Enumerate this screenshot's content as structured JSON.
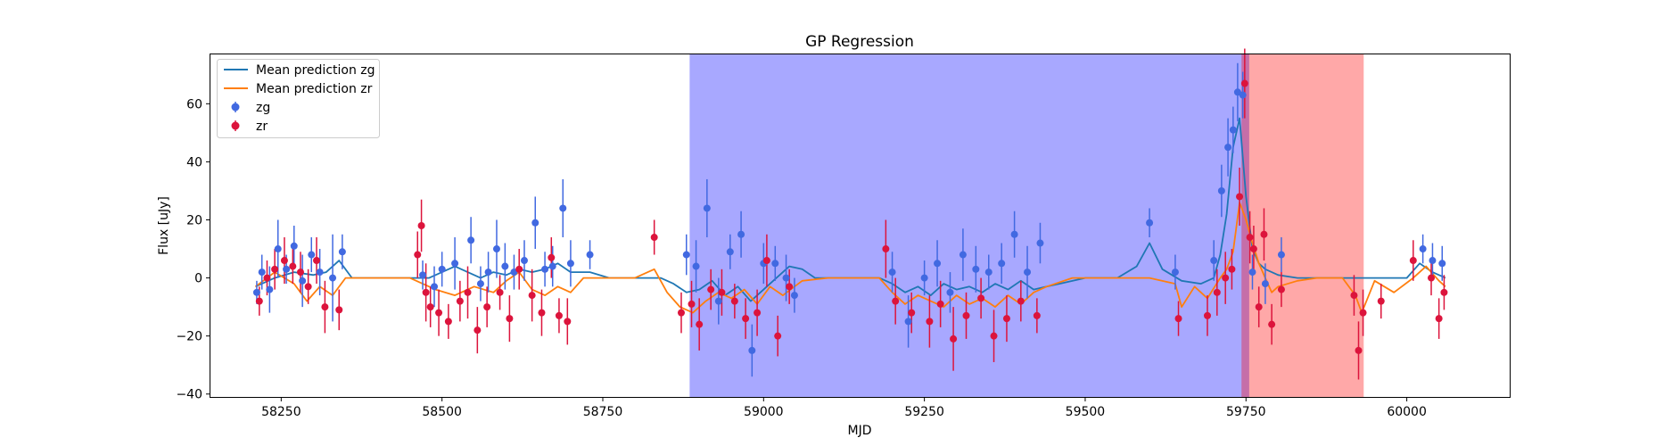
{
  "chart_data": {
    "type": "scatter",
    "title": "GP Regression",
    "xlabel": "MJD",
    "ylabel": "Flux [uJy]",
    "xlim": [
      58140,
      60160
    ],
    "ylim": [
      -41,
      77
    ],
    "xticks": [
      58250,
      58500,
      58750,
      59000,
      59250,
      59500,
      59750,
      60000
    ],
    "yticks": [
      -40,
      -20,
      0,
      20,
      40,
      60
    ],
    "grid": false,
    "legend_position": "top-left",
    "shaded_regions": [
      {
        "x": [
          58885,
          59755
        ],
        "color": "#0000ff",
        "opacity": 0.34
      },
      {
        "x": [
          59743,
          59933
        ],
        "color": "#ff0000",
        "opacity": 0.34
      }
    ],
    "series": [
      {
        "name": "Mean prediction zg",
        "kind": "line",
        "color": "#1f77b4",
        "x": [
          58210,
          58240,
          58270,
          58300,
          58320,
          58340,
          58360,
          58400,
          58450,
          58480,
          58500,
          58520,
          58540,
          58560,
          58580,
          58600,
          58620,
          58640,
          58660,
          58680,
          58700,
          58730,
          58760,
          58800,
          58840,
          58860,
          58880,
          58900,
          58920,
          58940,
          58960,
          58980,
          59000,
          59020,
          59040,
          59060,
          59080,
          59100,
          59150,
          59180,
          59200,
          59220,
          59240,
          59260,
          59280,
          59300,
          59320,
          59340,
          59360,
          59380,
          59400,
          59420,
          59440,
          59460,
          59500,
          59550,
          59580,
          59600,
          59620,
          59650,
          59680,
          59700,
          59710,
          59720,
          59730,
          59740,
          59750,
          59760,
          59770,
          59780,
          59800,
          59830,
          59860,
          59900,
          59950,
          60000,
          60020,
          60040,
          60060
        ],
        "y": [
          -3,
          0,
          2,
          1,
          2,
          6,
          0,
          0,
          0,
          0,
          2,
          4,
          2,
          0,
          2,
          1,
          3,
          2,
          3,
          5,
          2,
          2,
          0,
          0,
          0,
          -2,
          -5,
          -4,
          -1,
          -6,
          -3,
          -8,
          -4,
          0,
          4,
          3,
          0,
          0,
          0,
          0,
          -2,
          -5,
          -3,
          -6,
          -2,
          -4,
          -3,
          -5,
          -2,
          -4,
          -1,
          -4,
          -3,
          -2,
          0,
          0,
          4,
          12,
          3,
          -1,
          -2,
          0,
          8,
          22,
          45,
          55,
          28,
          10,
          5,
          3,
          1,
          0,
          0,
          0,
          0,
          0,
          5,
          2,
          0
        ]
      },
      {
        "name": "Mean prediction zr",
        "kind": "line",
        "color": "#ff7f0e",
        "x": [
          58210,
          58240,
          58270,
          58290,
          58310,
          58330,
          58350,
          58400,
          58450,
          58470,
          58490,
          58520,
          58550,
          58580,
          58600,
          58620,
          58640,
          58660,
          58680,
          58700,
          58720,
          58760,
          58800,
          58830,
          58850,
          58870,
          58890,
          58910,
          58930,
          58950,
          58970,
          58990,
          59010,
          59030,
          59060,
          59100,
          59150,
          59180,
          59200,
          59220,
          59240,
          59260,
          59280,
          59300,
          59320,
          59340,
          59360,
          59380,
          59400,
          59420,
          59440,
          59480,
          59550,
          59600,
          59640,
          59650,
          59670,
          59690,
          59710,
          59720,
          59730,
          59740,
          59750,
          59760,
          59770,
          59780,
          59790,
          59800,
          59830,
          59860,
          59900,
          59920,
          59930,
          59950,
          59980,
          60010,
          60030,
          60050,
          60060
        ],
        "y": [
          -3,
          2,
          -2,
          -8,
          -3,
          -6,
          0,
          0,
          0,
          -2,
          -4,
          -6,
          -3,
          -5,
          -1,
          2,
          -4,
          -6,
          -3,
          -5,
          0,
          0,
          0,
          3,
          -5,
          -10,
          -12,
          -8,
          -5,
          -7,
          -4,
          -9,
          -3,
          -6,
          -1,
          0,
          0,
          0,
          -5,
          -9,
          -6,
          -8,
          -10,
          -6,
          -9,
          -7,
          -10,
          -6,
          -9,
          -5,
          -3,
          0,
          0,
          0,
          -2,
          -10,
          -3,
          -7,
          0,
          3,
          9,
          26,
          20,
          12,
          5,
          0,
          -5,
          -3,
          -1,
          0,
          0,
          -6,
          -12,
          -1,
          -5,
          0,
          4,
          -1,
          -3
        ]
      },
      {
        "name": "zg",
        "kind": "errorbar",
        "color": "#4169e1",
        "x": [
          58212,
          58220,
          58232,
          58245,
          58258,
          58270,
          58283,
          58297,
          58310,
          58330,
          58345,
          58470,
          58488,
          58500,
          58520,
          58545,
          58560,
          58572,
          58585,
          58598,
          58612,
          58628,
          58645,
          58660,
          58672,
          58688,
          58700,
          58730,
          58880,
          58895,
          58912,
          58930,
          58948,
          58965,
          58982,
          59000,
          59018,
          59035,
          59048,
          59200,
          59225,
          59250,
          59270,
          59290,
          59310,
          59330,
          59350,
          59370,
          59390,
          59410,
          59430,
          59600,
          59640,
          59700,
          59712,
          59722,
          59730,
          59737,
          59745,
          59760,
          59780,
          59805,
          60025,
          60040,
          60055
        ],
        "y": [
          -5,
          2,
          -4,
          10,
          3,
          11,
          -1,
          8,
          2,
          0,
          9,
          1,
          -3,
          3,
          5,
          13,
          -2,
          2,
          10,
          4,
          2,
          6,
          19,
          3,
          4,
          24,
          5,
          8,
          8,
          4,
          24,
          -8,
          9,
          15,
          -25,
          5,
          5,
          0,
          -6,
          2,
          -15,
          0,
          5,
          -5,
          8,
          3,
          2,
          5,
          15,
          2,
          12,
          19,
          2,
          6,
          30,
          45,
          51,
          64,
          63,
          2,
          -2,
          8,
          10,
          6,
          5
        ],
        "yerr": [
          4,
          6,
          8,
          10,
          5,
          7,
          9,
          6,
          8,
          15,
          6,
          5,
          7,
          6,
          9,
          8,
          6,
          7,
          10,
          8,
          6,
          7,
          9,
          6,
          7,
          10,
          8,
          5,
          7,
          9,
          10,
          8,
          6,
          8,
          9,
          7,
          6,
          8,
          6,
          7,
          9,
          6,
          8,
          7,
          9,
          8,
          6,
          7,
          8,
          9,
          7,
          5,
          6,
          7,
          9,
          10,
          8,
          10,
          8,
          6,
          7,
          6,
          5,
          6,
          6
        ]
      },
      {
        "name": "zr",
        "kind": "errorbar",
        "color": "#dc143c",
        "x": [
          58216,
          58228,
          58240,
          58255,
          58268,
          58280,
          58292,
          58305,
          58318,
          58340,
          58462,
          58468,
          58475,
          58482,
          58495,
          58510,
          58528,
          58540,
          58555,
          58570,
          58590,
          58605,
          58620,
          58640,
          58655,
          58670,
          58682,
          58695,
          58830,
          58872,
          58888,
          58900,
          58918,
          58935,
          58955,
          58972,
          58990,
          59005,
          59022,
          59040,
          59190,
          59205,
          59230,
          59258,
          59275,
          59295,
          59315,
          59338,
          59358,
          59378,
          59400,
          59425,
          59645,
          59690,
          59705,
          59718,
          59728,
          59740,
          59748,
          59756,
          59762,
          59770,
          59778,
          59790,
          59805,
          59918,
          59925,
          59932,
          59960,
          60010,
          60038,
          60050,
          60058
        ],
        "y": [
          -8,
          0,
          3,
          6,
          4,
          2,
          -3,
          6,
          -10,
          -11,
          8,
          18,
          -5,
          -10,
          -12,
          -15,
          -8,
          -5,
          -18,
          -10,
          -5,
          -14,
          3,
          -6,
          -12,
          7,
          -13,
          -15,
          14,
          -12,
          -9,
          -16,
          -4,
          -5,
          -8,
          -14,
          -12,
          6,
          -20,
          -3,
          10,
          -8,
          -12,
          -15,
          -9,
          -21,
          -13,
          -7,
          -20,
          -14,
          -8,
          -13,
          -14,
          -13,
          -5,
          0,
          3,
          28,
          67,
          14,
          10,
          -10,
          15,
          -16,
          -4,
          -6,
          -25,
          -12,
          -8,
          6,
          0,
          -14,
          -5
        ],
        "yerr": [
          5,
          6,
          7,
          8,
          6,
          7,
          6,
          8,
          9,
          7,
          8,
          9,
          10,
          7,
          8,
          6,
          7,
          9,
          8,
          7,
          6,
          8,
          7,
          9,
          8,
          7,
          6,
          8,
          6,
          7,
          8,
          9,
          7,
          8,
          6,
          7,
          8,
          9,
          7,
          6,
          10,
          8,
          7,
          9,
          8,
          11,
          8,
          7,
          9,
          8,
          7,
          6,
          6,
          7,
          8,
          9,
          7,
          10,
          12,
          9,
          8,
          7,
          9,
          7,
          6,
          7,
          10,
          8,
          6,
          7,
          6,
          7,
          6
        ]
      }
    ]
  }
}
